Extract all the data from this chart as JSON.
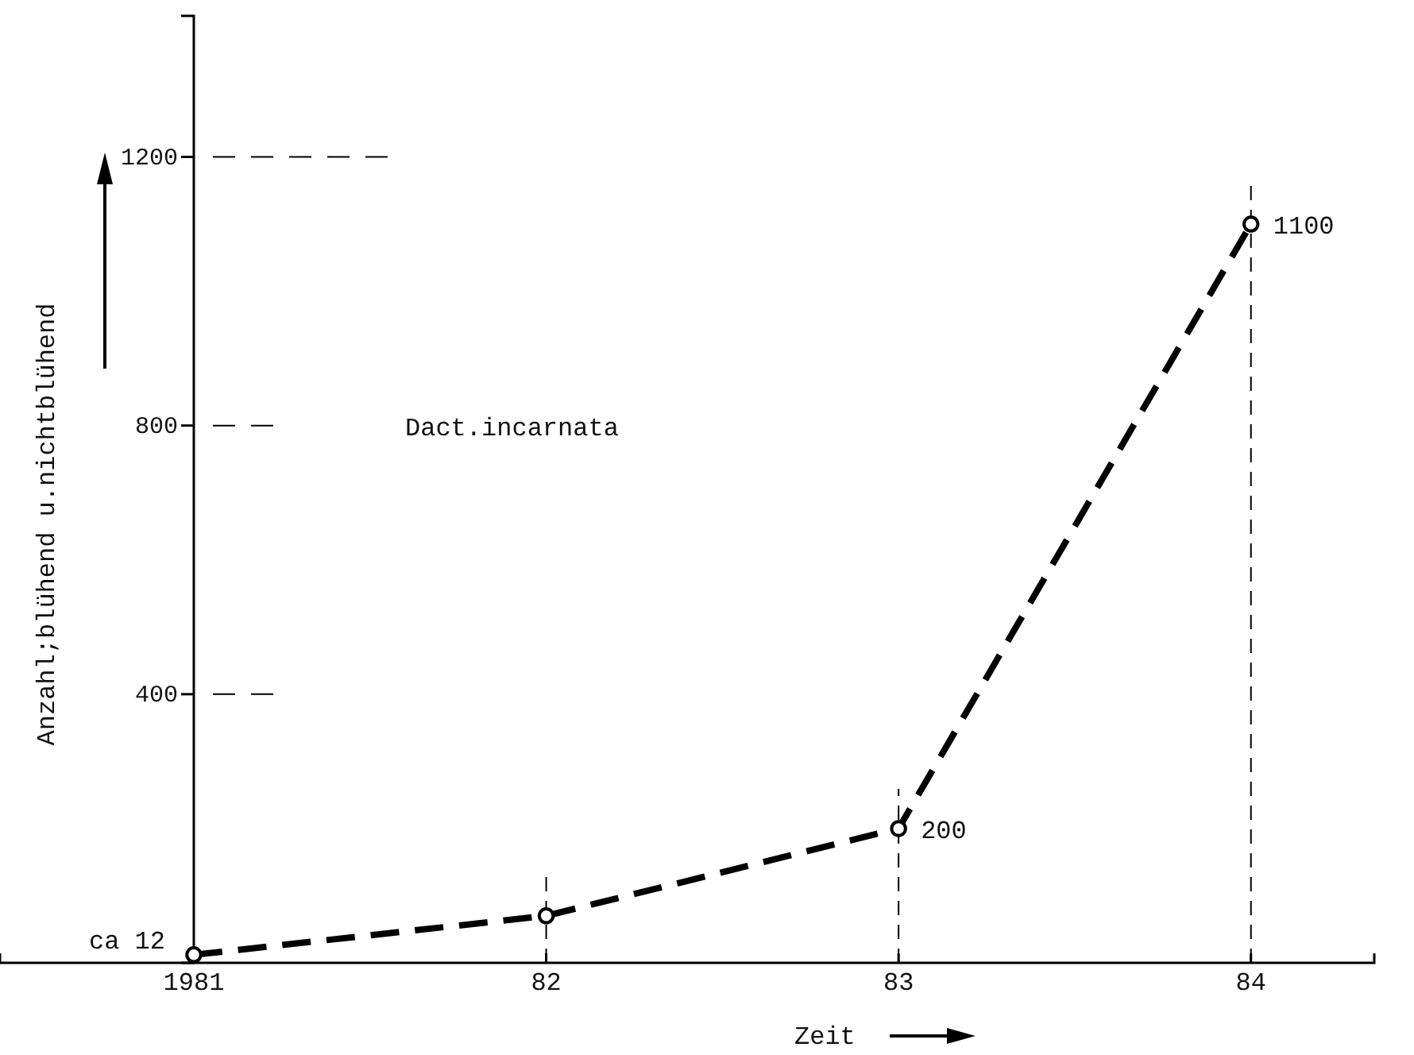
{
  "chart_data": {
    "type": "line",
    "xlabel": "Zeit",
    "ylabel": "Anzahl;blühend u.nichtblühend",
    "annotations": [
      "Dact.incarnata"
    ],
    "x": [
      1981,
      1982,
      1983,
      1984
    ],
    "series": [
      {
        "color": "#000000",
        "values": [
          12,
          70,
          200,
          1100
        ],
        "value_labels": [
          "ca 12",
          null,
          "200",
          "1100"
        ]
      }
    ],
    "xlim": [
      1980.45,
      1984.35
    ],
    "ylim": [
      0,
      1410
    ],
    "xticks": [
      1981,
      {
        "value": 1982,
        "label": "82"
      },
      {
        "value": 1983,
        "label": "83"
      },
      {
        "value": 1984,
        "label": "84"
      }
    ],
    "yticks": [
      400,
      800,
      1200
    ],
    "ref_lines": [
      {
        "axis": "x",
        "value": 1982,
        "line_style": "dashed"
      },
      {
        "axis": "x",
        "value": 1983,
        "line_style": "dashed"
      },
      {
        "axis": "x",
        "value": 1984,
        "line_style": "dashed"
      }
    ],
    "marker": "circle",
    "line_style": "dashed",
    "grid": false
  }
}
